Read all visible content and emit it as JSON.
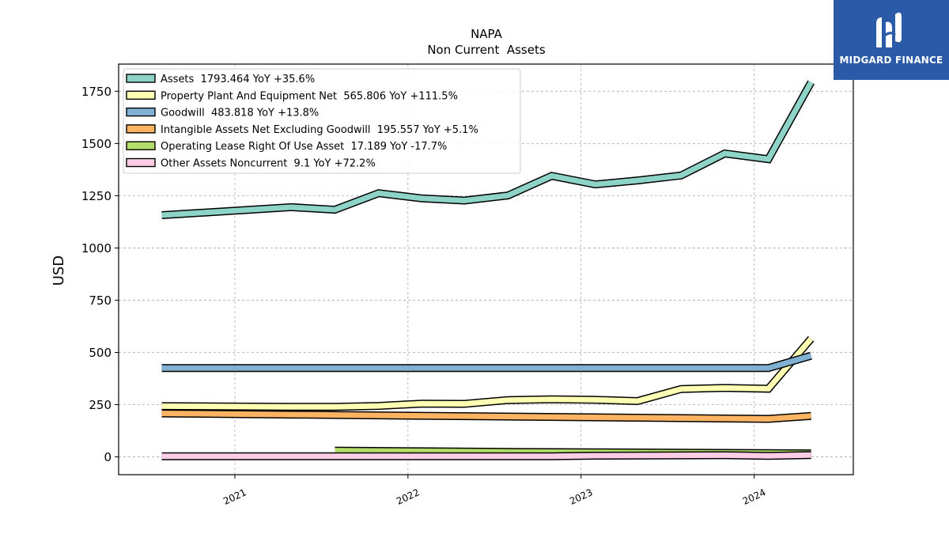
{
  "brand": {
    "name": "MIDGARD FINANCE",
    "color": "#2b5aa8"
  },
  "chart_data": {
    "type": "line",
    "title": "NAPA",
    "subtitle": "Non Current  Assets",
    "ylabel": "USD",
    "xlabel": "",
    "ylim": [
      -85,
      1880
    ],
    "xlim": [
      "2020-05-01",
      "2024-07-28"
    ],
    "yticks": [
      0,
      250,
      500,
      750,
      1000,
      1250,
      1500,
      1750
    ],
    "xticks": [
      "2021",
      "2022",
      "2023",
      "2024"
    ],
    "grid": true,
    "legend_position": "top-left",
    "series": [
      {
        "name": "Assets",
        "legend": "Assets  1793.464 YoY +35.6%",
        "color": "#8dd3c7",
        "x": [
          "2020-07-31",
          "2021-04-30",
          "2021-07-31",
          "2021-10-31",
          "2022-01-31",
          "2022-04-30",
          "2022-07-31",
          "2022-10-31",
          "2023-01-31",
          "2023-04-30",
          "2023-07-31",
          "2023-10-31",
          "2024-01-31",
          "2024-04-30"
        ],
        "y": [
          1157,
          1195,
          1183,
          1262,
          1237,
          1227,
          1251,
          1345,
          1304,
          1323,
          1347,
          1452,
          1425,
          1793
        ]
      },
      {
        "name": "Property Plant And Equipment Net",
        "legend": "Property Plant And Equipment Net  565.806 YoY +111.5%",
        "color": "#ffffb3",
        "x": [
          "2020-07-31",
          "2021-04-30",
          "2021-07-31",
          "2021-10-31",
          "2022-01-31",
          "2022-04-30",
          "2022-07-31",
          "2022-10-31",
          "2023-01-31",
          "2023-04-30",
          "2023-07-31",
          "2023-10-31",
          "2024-01-31",
          "2024-04-30"
        ],
        "y": [
          243,
          240,
          240,
          244,
          255,
          254,
          272,
          276,
          273,
          267,
          325,
          330,
          326,
          566
        ]
      },
      {
        "name": "Goodwill",
        "legend": "Goodwill  483.818 YoY +13.8%",
        "color": "#80b1d3",
        "x": [
          "2020-07-31",
          "2024-01-31",
          "2024-04-30"
        ],
        "y": [
          425,
          425,
          484
        ]
      },
      {
        "name": "Intangible Assets Net Excluding Goodwill",
        "legend": "Intangible Assets Net Excluding Goodwill  195.557 YoY +5.1%",
        "color": "#fdb462",
        "x": [
          "2020-07-31",
          "2024-01-31",
          "2024-04-30"
        ],
        "y": [
          208,
          182,
          196
        ]
      },
      {
        "name": "Operating Lease Right Of Use Asset",
        "legend": "Operating Lease Right Of Use Asset  17.189 YoY -17.7%",
        "color": "#b3de69",
        "x": [
          "2021-07-31",
          "2022-07-31",
          "2023-01-31",
          "2024-04-30"
        ],
        "y": [
          30,
          24,
          22,
          17
        ]
      },
      {
        "name": "Other Assets Noncurrent",
        "legend": "Other Assets Noncurrent  9.1 YoY +72.2%",
        "color": "#fccde5",
        "x": [
          "2020-07-31",
          "2022-10-31",
          "2023-01-31",
          "2023-10-31",
          "2024-01-31",
          "2024-04-30"
        ],
        "y": [
          3,
          3,
          6,
          8,
          5,
          9
        ]
      }
    ]
  }
}
